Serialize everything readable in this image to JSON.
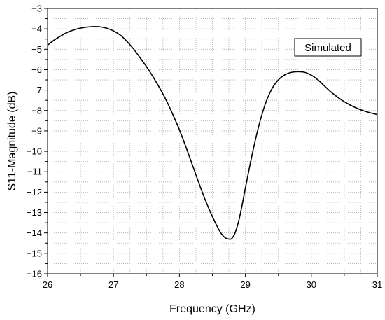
{
  "chart_data": {
    "type": "line",
    "title": "",
    "xlabel": "Frequency (GHz)",
    "ylabel": "S11-Magnitude (dB)",
    "xlim": [
      26,
      31
    ],
    "ylim": [
      -16,
      -3
    ],
    "x_ticks": [
      "26",
      "27",
      "28",
      "29",
      "30",
      "31"
    ],
    "y_ticks": [
      "-3",
      "-4",
      "-5",
      "-6",
      "-7",
      "-8",
      "-9",
      "-10",
      "-11",
      "-12",
      "-13",
      "-14",
      "-15",
      "-16"
    ],
    "grid": true,
    "legend_text": "Simulated",
    "legend_position": "top-right",
    "line_color": "#000000",
    "series": [
      {
        "name": "Simulated",
        "x": [
          26.0,
          26.1,
          26.2,
          26.3,
          26.4,
          26.5,
          26.6,
          26.7,
          26.75,
          26.8,
          26.9,
          27.0,
          27.1,
          27.2,
          27.3,
          27.4,
          27.5,
          27.6,
          27.7,
          27.8,
          27.9,
          28.0,
          28.1,
          28.2,
          28.3,
          28.4,
          28.5,
          28.6,
          28.65,
          28.7,
          28.75,
          28.78,
          28.8,
          28.83,
          28.86,
          28.9,
          28.95,
          29.0,
          29.1,
          29.2,
          29.3,
          29.4,
          29.5,
          29.6,
          29.7,
          29.8,
          29.9,
          30.0,
          30.1,
          30.2,
          30.3,
          30.4,
          30.5,
          30.6,
          30.7,
          30.8,
          30.9,
          31.0
        ],
        "y": [
          -4.8,
          -4.55,
          -4.35,
          -4.17,
          -4.05,
          -3.96,
          -3.91,
          -3.89,
          -3.89,
          -3.9,
          -3.97,
          -4.1,
          -4.3,
          -4.6,
          -4.97,
          -5.4,
          -5.85,
          -6.35,
          -6.9,
          -7.5,
          -8.2,
          -8.95,
          -9.8,
          -10.7,
          -11.6,
          -12.45,
          -13.2,
          -13.85,
          -14.1,
          -14.25,
          -14.3,
          -14.3,
          -14.25,
          -14.1,
          -13.85,
          -13.4,
          -12.65,
          -11.8,
          -10.2,
          -8.8,
          -7.7,
          -6.95,
          -6.5,
          -6.25,
          -6.13,
          -6.1,
          -6.13,
          -6.27,
          -6.5,
          -6.8,
          -7.1,
          -7.35,
          -7.57,
          -7.75,
          -7.9,
          -8.02,
          -8.12,
          -8.2
        ]
      }
    ]
  }
}
